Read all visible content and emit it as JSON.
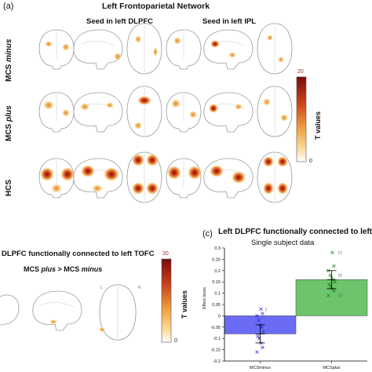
{
  "panel_a": {
    "letter": "(a)",
    "title": "Left Frontoparietal Network",
    "seed_left": "Seed in left DLPFC",
    "seed_right": "Seed in left IPL",
    "rows": [
      {
        "prefix": "MCS ",
        "italic": "minus"
      },
      {
        "prefix": "MCS ",
        "italic": "plus"
      },
      {
        "prefix": "HCS",
        "italic": ""
      }
    ],
    "colorbar": {
      "max": "20",
      "min": "0",
      "label": "T values"
    }
  },
  "panel_b": {
    "title": "DLPFC functionally connected to left TOFC",
    "contrast_prefix": "MCS ",
    "contrast_plus": "plus",
    "contrast_mid": " > MCS ",
    "contrast_minus": "minus",
    "colorbar": {
      "max": "20",
      "min": "0",
      "label": "T values"
    }
  },
  "panel_c": {
    "letter": "(c)",
    "chart_data": {
      "type": "bar",
      "title": "Left DLPFC functionally connected to left TC",
      "subtitle": "Single subject data",
      "ylabel": "Effect sizes",
      "categories": [
        "MCSminus",
        "MCSplus"
      ],
      "values": [
        -0.08,
        0.16
      ],
      "ylim": [
        -0.2,
        0.3
      ],
      "yticks": [
        "-0.2",
        "-0.15",
        "-0.1",
        "-0.05",
        "0",
        "0.05",
        "0.1",
        "0.15",
        "0.2",
        "0.25",
        "0.3"
      ],
      "colors": [
        "#6b6bf5",
        "#6cc46c"
      ],
      "point_labels_plus": [
        "17",
        "16",
        "15"
      ],
      "point_labels_minus": [
        "1"
      ]
    }
  }
}
